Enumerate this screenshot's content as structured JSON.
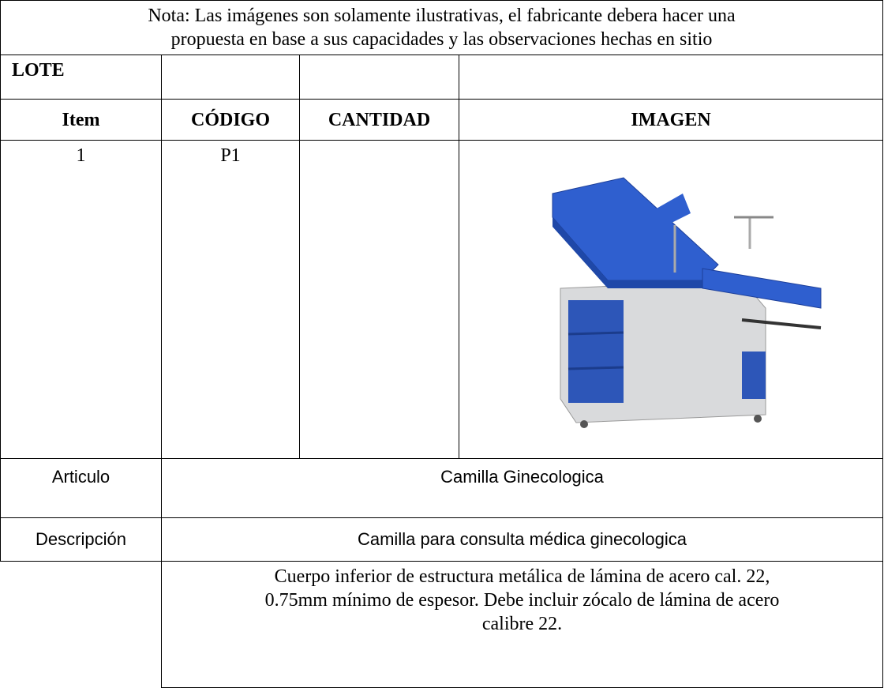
{
  "note": [
    "Nota: Las imágenes son solamente ilustrativas, el fabricante debera hacer una",
    "propuesta en base a sus capacidades y las observaciones hechas en sitio"
  ],
  "lote_label": "LOTE",
  "headers": [
    "Item",
    "CÓDIGO",
    "CANTIDAD",
    "IMAGEN"
  ],
  "item": {
    "number": "1",
    "code": "P1"
  },
  "articulo": {
    "label": "Articulo",
    "value": "Camilla Ginecologica"
  },
  "descripcion": {
    "label": "Descripción",
    "value": "Camilla para consulta médica ginecologica"
  },
  "detail": [
    "Cuerpo inferior de estructura metálica de lámina de acero cal. 22,",
    "0.75mm mínimo de espesor. Debe incluir zócalo de lámina de acero",
    "calibre 22."
  ]
}
